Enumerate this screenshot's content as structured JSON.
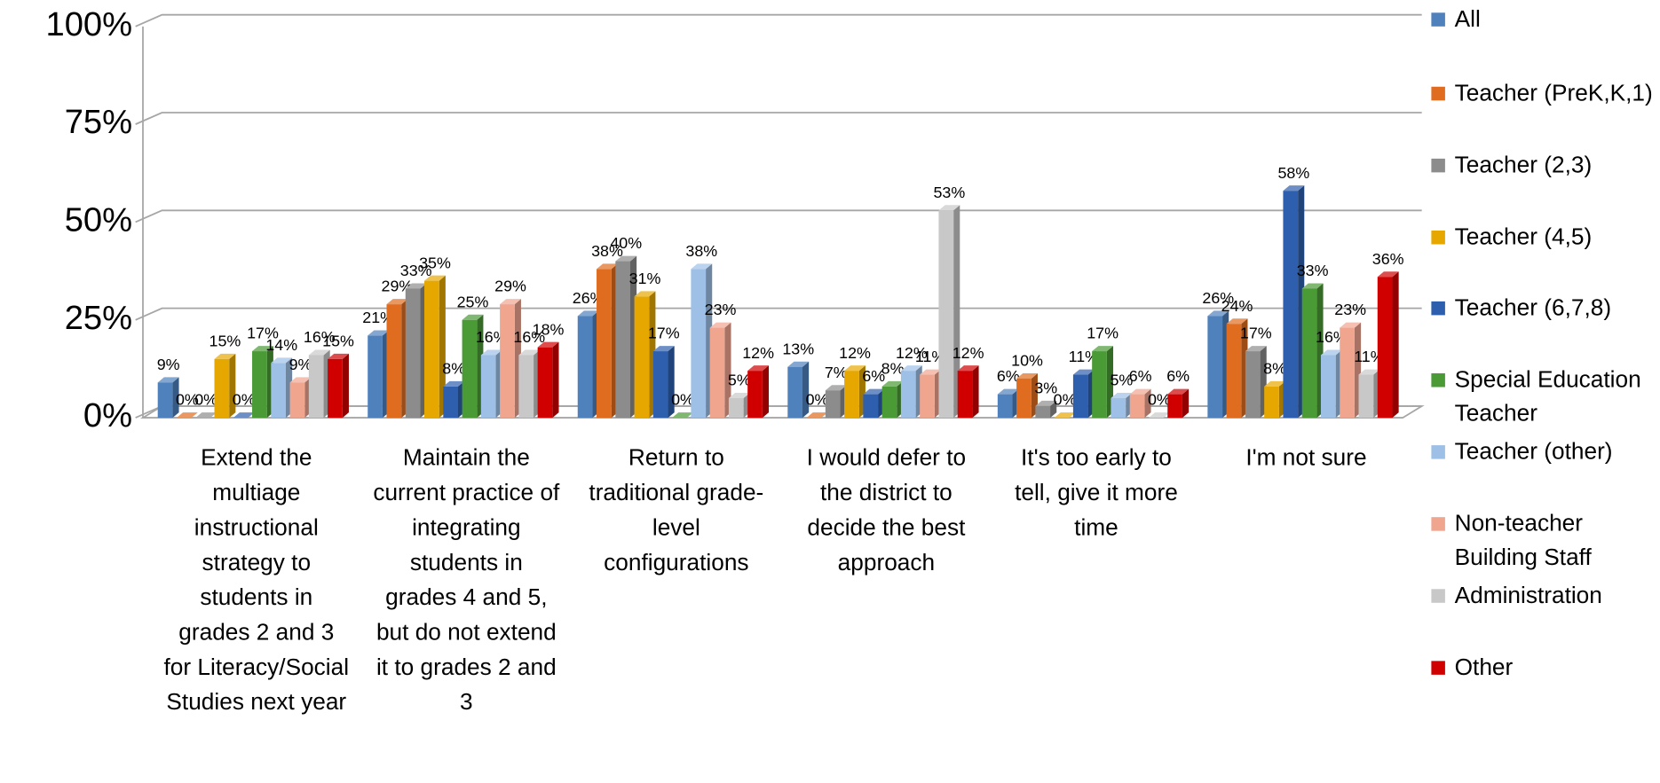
{
  "chart_data": {
    "type": "bar3d",
    "categories": [
      "Extend the multiage instructional strategy to students in grades 2 and 3 for Literacy/Social Studies next year",
      "Maintain the current practice of integrating students in grades 4 and 5, but do not extend it to grades 2 and 3",
      "Return to traditional grade-level configurations",
      "I would defer to the district to decide the best approach",
      "It's too early to tell, give it more time",
      "I'm not sure"
    ],
    "series": [
      {
        "name": "All",
        "color": "#4f81bd",
        "values": [
          9,
          21,
          26,
          13,
          6,
          26
        ],
        "value_labels": [
          "9%",
          "21%",
          "26%",
          "13%",
          "6%",
          "26%"
        ]
      },
      {
        "name": "Teacher (PreK,K,1)",
        "color": "#e06c1f",
        "values": [
          0,
          29,
          38,
          0,
          10,
          24
        ],
        "value_labels": [
          "0%",
          "29%",
          "38%",
          "0%",
          "10%",
          "24%"
        ]
      },
      {
        "name": "Teacher (2,3)",
        "color": "#8c8c8c",
        "values": [
          0,
          33,
          40,
          7,
          3,
          17
        ],
        "value_labels": [
          "0%",
          "33%",
          "40%",
          "7%",
          "3%",
          "17%"
        ]
      },
      {
        "name": "Teacher (4,5)",
        "color": "#e6a800",
        "values": [
          15,
          35,
          31,
          12,
          0,
          8
        ],
        "value_labels": [
          "15%",
          "35%",
          "31%",
          "12%",
          "0%",
          "8%"
        ]
      },
      {
        "name": "Teacher (6,7,8)",
        "color": "#2e5fae",
        "values": [
          0,
          8,
          17,
          6,
          11,
          58
        ],
        "value_labels": [
          "0%",
          "8%",
          "17%",
          "6%",
          "11%",
          "58%"
        ]
      },
      {
        "name": "Special Education Teacher",
        "color": "#4a9a36",
        "values": [
          17,
          25,
          0,
          8,
          17,
          33
        ],
        "value_labels": [
          "17%",
          "25%",
          "0%",
          "8%",
          "17%",
          "33%"
        ]
      },
      {
        "name": "Teacher (other)",
        "color": "#9ec0e6",
        "values": [
          14,
          16,
          38,
          12,
          5,
          16
        ],
        "value_labels": [
          "14%",
          "16%",
          "38%",
          "12%",
          "5%",
          "16%"
        ]
      },
      {
        "name": "Non-teacher Building Staff",
        "color": "#f0a58f",
        "values": [
          9,
          29,
          23,
          11,
          6,
          23
        ],
        "value_labels": [
          "9%",
          "29%",
          "23%",
          "11%",
          "6%",
          "23%"
        ]
      },
      {
        "name": "Administration",
        "color": "#c8c8c8",
        "values": [
          16,
          16,
          5,
          53,
          0,
          11
        ],
        "value_labels": [
          "16%",
          "16%",
          "5%",
          "53%",
          "0%",
          "11%"
        ]
      },
      {
        "name": "Other",
        "color": "#d00000",
        "values": [
          15,
          18,
          12,
          12,
          6,
          36
        ],
        "value_labels": [
          "15%",
          "18%",
          "12%",
          "12%",
          "6%",
          "36%"
        ]
      }
    ],
    "ylim": [
      0,
      100
    ],
    "yticks": [
      {
        "value": 0,
        "label": "0%"
      },
      {
        "value": 25,
        "label": "25%"
      },
      {
        "value": 50,
        "label": "50%"
      },
      {
        "value": 75,
        "label": "75%"
      },
      {
        "value": 100,
        "label": "100%"
      }
    ],
    "grid": true,
    "legend": "right"
  }
}
